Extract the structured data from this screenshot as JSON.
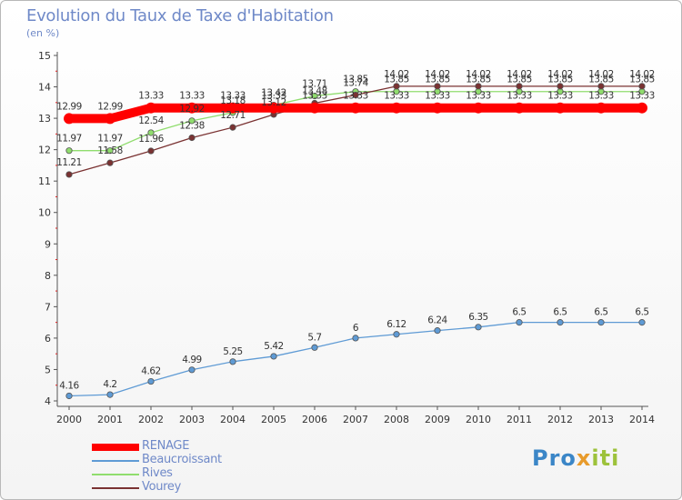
{
  "header": {
    "title": "Evolution du Taux de Taxe d'Habitation",
    "subtitle": "(en %)"
  },
  "brand": {
    "part1": "Pro",
    "part2": "x",
    "part3": "iti"
  },
  "chart_data": {
    "type": "line",
    "title": "Evolution du Taux de Taxe d'Habitation",
    "ylabel": "(en %)",
    "xlabel": "",
    "x": [
      "2000",
      "2001",
      "2002",
      "2003",
      "2004",
      "2005",
      "2006",
      "2007",
      "2008",
      "2009",
      "2010",
      "2011",
      "2012",
      "2013",
      "2014"
    ],
    "ylim": [
      4,
      15
    ],
    "yticks": [
      "4",
      "5",
      "6",
      "7",
      "8",
      "9",
      "10",
      "11",
      "12",
      "13",
      "14",
      "15"
    ],
    "grid": false,
    "legend_position": "bottom-left",
    "series": [
      {
        "name": "RENAGE",
        "color": "#ff0000",
        "values": [
          12.99,
          12.99,
          13.33,
          13.33,
          13.33,
          13.33,
          13.33,
          13.33,
          13.33,
          13.33,
          13.33,
          13.33,
          13.33,
          13.33,
          13.33
        ],
        "labels": [
          "12.99",
          "12.99",
          "13.33",
          "13.33",
          "13.33",
          "13.33",
          "13.33",
          "13.33",
          "13.33",
          "13.33",
          "13.33",
          "13.33",
          "13.33",
          "13.33",
          "13.33"
        ]
      },
      {
        "name": "Beaucroissant",
        "color": "#5f9bd5",
        "values": [
          4.16,
          4.2,
          4.62,
          4.99,
          5.25,
          5.42,
          5.7,
          6,
          6.12,
          6.24,
          6.35,
          6.5,
          6.5,
          6.5,
          6.5
        ],
        "labels": [
          "4.16",
          "4.2",
          "4.62",
          "4.99",
          "5.25",
          "5.42",
          "5.7",
          "6",
          "6.12",
          "6.24",
          "6.35",
          "6.5",
          "6.5",
          "6.5",
          "6.5"
        ]
      },
      {
        "name": "Rives",
        "color": "#90dd6e",
        "values": [
          11.97,
          11.97,
          12.54,
          12.92,
          13.18,
          13.42,
          13.71,
          13.85,
          13.85,
          13.85,
          13.85,
          13.85,
          13.85,
          13.85,
          13.85
        ],
        "labels": [
          "11.97",
          "11.97",
          "12.54",
          "12.92",
          "13.18",
          "13.42",
          "13.71",
          "13.85",
          "13.85",
          "13.85",
          "13.85",
          "13.85",
          "13.85",
          "13.85",
          "13.85"
        ]
      },
      {
        "name": "Vourey",
        "color": "#7a3232",
        "values": [
          11.21,
          11.58,
          11.96,
          12.38,
          12.71,
          13.12,
          13.48,
          13.74,
          14.02,
          14.02,
          14.02,
          14.02,
          14.02,
          14.02,
          14.02
        ],
        "labels": [
          "11.21",
          "11.58",
          "11.96",
          "12.38",
          "12.71",
          "13.12",
          "13.48",
          "13.74",
          "14.02",
          "14.02",
          "14.02",
          "14.02",
          "14.02",
          "14.02",
          "14.02"
        ]
      }
    ]
  }
}
